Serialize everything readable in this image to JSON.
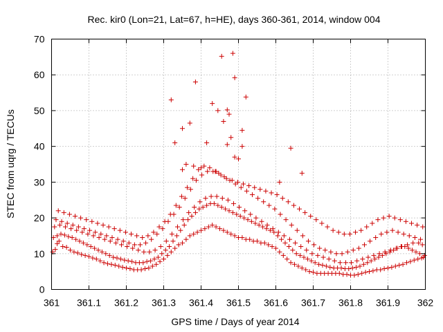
{
  "chart_data": {
    "type": "scatter",
    "title": "Rec. kir0 (Lon=21, Lat=67, h=HE), days 360-361, 2014, window 004",
    "xlabel": "GPS time / Days of year 2014",
    "ylabel": "STEC from uqrg / TECUs",
    "xlim": [
      361,
      362
    ],
    "ylim": [
      0,
      70
    ],
    "xticks": [
      361,
      361.1,
      361.2,
      361.3,
      361.4,
      361.5,
      361.6,
      361.7,
      361.8,
      361.9,
      362
    ],
    "xtick_labels": [
      "361",
      "361.1",
      "361.2",
      "361.3",
      "361.4",
      "361.5",
      "361.6",
      "361.7",
      "361.8",
      "361.9",
      "362"
    ],
    "yticks": [
      0,
      10,
      20,
      30,
      40,
      50,
      60,
      70
    ],
    "ytick_labels": [
      "0",
      "10",
      "20",
      "30",
      "40",
      "50",
      "60",
      "70"
    ],
    "grid": true,
    "marker": "+",
    "color": "#cc0000",
    "series": [
      {
        "name": "STEC",
        "x": [
          361.003,
          361.01,
          361.015,
          361.02,
          361.03,
          361.04,
          361.05,
          361.06,
          361.07,
          361.08,
          361.09,
          361.1,
          361.11,
          361.12,
          361.13,
          361.14,
          361.15,
          361.16,
          361.17,
          361.18,
          361.19,
          361.2,
          361.21,
          361.22,
          361.23,
          361.24,
          361.25,
          361.26,
          361.27,
          361.28,
          361.29,
          361.3,
          361.31,
          361.32,
          361.33,
          361.34,
          361.35,
          361.36,
          361.37,
          361.38,
          361.39,
          361.4,
          361.41,
          361.42,
          361.43,
          361.44,
          361.45,
          361.46,
          361.47,
          361.48,
          361.49,
          361.5,
          361.51,
          361.52,
          361.53,
          361.54,
          361.55,
          361.56,
          361.57,
          361.58,
          361.59,
          361.6,
          361.61,
          361.62,
          361.63,
          361.64,
          361.65,
          361.66,
          361.67,
          361.68,
          361.69,
          361.7,
          361.71,
          361.72,
          361.73,
          361.74,
          361.75,
          361.76,
          361.77,
          361.78,
          361.79,
          361.8,
          361.81,
          361.82,
          361.83,
          361.84,
          361.85,
          361.86,
          361.87,
          361.88,
          361.89,
          361.9,
          361.91,
          361.92,
          361.93,
          361.94,
          361.95,
          361.96,
          361.97,
          361.98,
          361.99,
          361.995,
          361.005,
          361.015,
          361.025,
          361.035,
          361.045,
          361.055,
          361.065,
          361.075,
          361.085,
          361.095,
          361.105,
          361.115,
          361.125,
          361.135,
          361.145,
          361.155,
          361.165,
          361.175,
          361.185,
          361.195,
          361.205,
          361.215,
          361.225,
          361.235,
          361.245,
          361.255,
          361.265,
          361.275,
          361.285,
          361.295,
          361.305,
          361.315,
          361.325,
          361.335,
          361.345,
          361.355,
          361.365,
          361.375,
          361.385,
          361.395,
          361.405,
          361.415,
          361.425,
          361.435,
          361.445,
          361.455,
          361.465,
          361.475,
          361.485,
          361.495,
          361.505,
          361.515,
          361.525,
          361.535,
          361.545,
          361.555,
          361.565,
          361.575,
          361.585,
          361.595,
          361.605,
          361.615,
          361.625,
          361.635,
          361.645,
          361.655,
          361.665,
          361.675,
          361.685,
          361.695,
          361.705,
          361.715,
          361.725,
          361.735,
          361.745,
          361.755,
          361.765,
          361.775,
          361.785,
          361.795,
          361.805,
          361.815,
          361.825,
          361.835,
          361.845,
          361.855,
          361.865,
          361.875,
          361.885,
          361.895,
          361.905,
          361.915,
          361.925,
          361.935,
          361.945,
          361.955,
          361.965,
          361.975,
          361.985,
          361.998,
          361.008,
          361.022,
          361.037,
          361.052,
          361.067,
          361.082,
          361.097,
          361.112,
          361.127,
          361.142,
          361.157,
          361.172,
          361.187,
          361.202,
          361.217,
          361.232,
          361.247,
          361.262,
          361.277,
          361.292,
          361.307,
          361.322,
          361.337,
          361.352,
          361.367,
          361.382,
          361.397,
          361.412,
          361.427,
          361.442,
          361.457,
          361.472,
          361.487,
          361.502,
          361.517,
          361.532,
          361.547,
          361.562,
          361.577,
          361.592,
          361.607,
          361.622,
          361.637,
          361.652,
          361.667,
          361.682,
          361.697,
          361.712,
          361.727,
          361.742,
          361.757,
          361.772,
          361.787,
          361.802,
          361.817,
          361.832,
          361.847,
          361.862,
          361.877,
          361.892,
          361.907,
          361.922,
          361.937,
          361.952,
          361.967,
          361.982,
          361.992,
          361.012,
          361.027,
          361.042,
          361.057,
          361.072,
          361.087,
          361.102,
          361.117,
          361.132,
          361.147,
          361.162,
          361.177,
          361.192,
          361.207,
          361.222,
          361.237,
          361.252,
          361.267,
          361.282,
          361.297,
          361.312,
          361.327,
          361.342,
          361.357,
          361.372,
          361.387,
          361.402,
          361.417,
          361.432,
          361.447,
          361.462,
          361.477,
          361.492,
          361.507,
          361.522,
          361.537,
          361.552,
          361.567,
          361.582,
          361.597,
          361.612,
          361.627,
          361.642,
          361.657,
          361.672,
          361.687,
          361.702,
          361.717,
          361.732,
          361.747,
          361.762,
          361.777,
          361.792,
          361.807,
          361.822,
          361.837,
          361.852,
          361.867,
          361.882,
          361.897,
          361.912,
          361.927,
          361.942,
          361.957,
          361.972,
          361.987,
          361.018,
          361.033,
          361.048,
          361.063,
          361.078,
          361.093,
          361.108,
          361.123,
          361.138,
          361.153,
          361.168,
          361.183,
          361.198,
          361.213,
          361.228,
          361.243,
          361.258,
          361.273,
          361.288,
          361.303,
          361.318,
          361.333,
          361.348,
          361.363,
          361.378,
          361.393,
          361.408,
          361.423,
          361.438,
          361.453,
          361.468,
          361.483,
          361.498,
          361.513,
          361.528,
          361.543,
          361.558,
          361.573,
          361.588,
          361.603,
          361.618,
          361.633,
          361.648,
          361.663,
          361.678,
          361.693,
          361.708,
          361.723,
          361.738,
          361.753,
          361.768,
          361.783,
          361.798,
          361.813,
          361.828,
          361.843,
          361.858,
          361.873,
          361.888,
          361.903,
          361.918,
          361.933,
          361.948,
          361.963,
          361.978,
          361.993,
          361.32,
          361.33,
          361.35,
          361.37,
          361.385,
          361.4,
          361.415,
          361.43,
          361.445,
          361.455,
          361.47,
          361.475,
          361.48,
          361.485,
          361.49,
          361.5,
          361.51,
          361.52,
          361.47,
          361.44,
          361.46,
          361.49,
          361.36,
          361.51,
          361.64,
          361.67,
          361.61,
          361.38,
          361.35
        ],
        "y": [
          10.5,
          11.2,
          12.8,
          13.5,
          12.0,
          11.8,
          11.0,
          10.5,
          10.2,
          9.8,
          9.5,
          9.2,
          8.8,
          8.5,
          8.0,
          7.5,
          7.2,
          7.0,
          6.8,
          6.5,
          6.2,
          6.0,
          5.8,
          5.5,
          5.5,
          5.5,
          5.8,
          6.0,
          6.5,
          7.0,
          7.8,
          8.5,
          9.5,
          10.5,
          11.5,
          12.5,
          13.0,
          14.0,
          15.0,
          15.5,
          16.0,
          16.5,
          17.0,
          17.5,
          18.0,
          17.5,
          17.0,
          16.5,
          16.0,
          15.5,
          15.0,
          14.5,
          14.5,
          14.0,
          14.0,
          13.5,
          13.5,
          13.0,
          13.0,
          12.5,
          12.0,
          11.5,
          10.5,
          9.5,
          8.5,
          7.5,
          7.0,
          6.5,
          6.0,
          5.5,
          5.0,
          4.8,
          4.5,
          4.5,
          4.5,
          4.5,
          4.5,
          4.5,
          4.5,
          4.2,
          4.2,
          4.0,
          4.0,
          4.2,
          4.5,
          4.8,
          5.0,
          5.2,
          5.5,
          5.5,
          5.8,
          6.0,
          6.2,
          6.5,
          6.8,
          7.0,
          7.5,
          7.8,
          8.2,
          8.5,
          8.8,
          9.0,
          14.5,
          15.0,
          15.5,
          15.2,
          14.8,
          14.5,
          14.0,
          13.5,
          13.0,
          12.5,
          12.0,
          11.5,
          11.0,
          10.5,
          10.0,
          9.5,
          9.0,
          8.8,
          8.5,
          8.2,
          8.0,
          7.8,
          7.5,
          7.5,
          7.5,
          7.8,
          8.0,
          8.5,
          9.0,
          10.0,
          11.0,
          12.0,
          13.5,
          15.0,
          16.5,
          18.0,
          19.5,
          20.5,
          21.5,
          22.5,
          23.0,
          23.5,
          24.0,
          24.0,
          23.5,
          23.0,
          22.5,
          22.0,
          21.5,
          21.0,
          20.5,
          20.0,
          19.5,
          19.0,
          18.5,
          18.0,
          17.5,
          17.0,
          16.5,
          16.0,
          15.0,
          14.0,
          13.0,
          12.0,
          11.0,
          10.0,
          9.5,
          9.0,
          8.5,
          8.0,
          7.5,
          7.0,
          6.8,
          6.5,
          6.2,
          6.0,
          6.0,
          6.0,
          5.8,
          5.8,
          6.0,
          6.2,
          6.5,
          7.0,
          7.5,
          8.0,
          8.5,
          9.0,
          9.5,
          10.0,
          10.5,
          11.0,
          11.5,
          12.0,
          12.0,
          11.5,
          11.0,
          10.5,
          10.0,
          9.5,
          17.5,
          18.0,
          17.5,
          17.0,
          16.5,
          16.0,
          15.5,
          15.0,
          14.5,
          14.0,
          13.5,
          13.0,
          12.5,
          12.0,
          11.5,
          11.0,
          10.5,
          10.5,
          11.0,
          12.0,
          13.5,
          15.5,
          17.5,
          19.5,
          21.5,
          23.0,
          24.5,
          25.5,
          26.0,
          26.0,
          25.5,
          25.0,
          24.0,
          23.0,
          22.0,
          21.0,
          20.0,
          19.0,
          18.0,
          17.0,
          16.0,
          15.0,
          14.0,
          13.0,
          12.0,
          11.0,
          10.0,
          9.5,
          9.0,
          8.5,
          8.0,
          7.5,
          7.5,
          7.5,
          8.0,
          8.5,
          9.0,
          9.5,
          10.0,
          10.5,
          11.0,
          11.5,
          12.0,
          12.5,
          13.0,
          13.0,
          12.5,
          19.5,
          19.0,
          18.5,
          18.0,
          17.5,
          17.0,
          16.5,
          16.0,
          15.5,
          15.0,
          14.5,
          14.0,
          13.5,
          13.0,
          12.5,
          12.5,
          13.0,
          14.0,
          15.5,
          17.0,
          19.0,
          21.0,
          23.0,
          25.5,
          28.0,
          30.5,
          32.0,
          33.0,
          33.0,
          32.5,
          31.5,
          30.5,
          29.5,
          28.5,
          27.5,
          26.5,
          25.5,
          24.5,
          23.5,
          22.5,
          21.0,
          19.5,
          18.0,
          16.5,
          15.0,
          13.5,
          12.5,
          11.5,
          11.0,
          10.5,
          10.0,
          10.0,
          10.5,
          11.0,
          11.5,
          12.5,
          13.5,
          14.5,
          15.5,
          16.0,
          16.5,
          16.0,
          15.5,
          15.0,
          14.5,
          14.0,
          22.0,
          21.5,
          21.0,
          20.5,
          20.0,
          19.5,
          19.0,
          18.5,
          18.0,
          17.5,
          17.0,
          16.5,
          16.0,
          15.5,
          15.0,
          14.5,
          15.0,
          16.0,
          17.5,
          19.0,
          21.0,
          23.5,
          26.0,
          28.5,
          31.0,
          33.5,
          34.5,
          34.0,
          33.0,
          32.0,
          31.0,
          30.5,
          30.0,
          29.5,
          29.0,
          28.5,
          28.0,
          27.5,
          27.0,
          26.5,
          25.5,
          24.5,
          23.5,
          22.5,
          21.5,
          20.5,
          19.5,
          18.5,
          17.5,
          16.5,
          16.0,
          15.5,
          15.5,
          16.0,
          16.5,
          17.5,
          18.5,
          19.5,
          20.0,
          20.5,
          20.0,
          19.5,
          19.0,
          18.5,
          18.0,
          17.5,
          53.0,
          41.0,
          45.0,
          46.5,
          58.0,
          34.0,
          41.0,
          52.0,
          50.0,
          65.2,
          50.2,
          49.0,
          42.5,
          66.0,
          59.2,
          36.5,
          44.5,
          53.8,
          40.5,
          33.0,
          47.0,
          37.0,
          35.0,
          40.0,
          39.5,
          32.5,
          30.0,
          34.5,
          33.5
        ]
      }
    ]
  }
}
